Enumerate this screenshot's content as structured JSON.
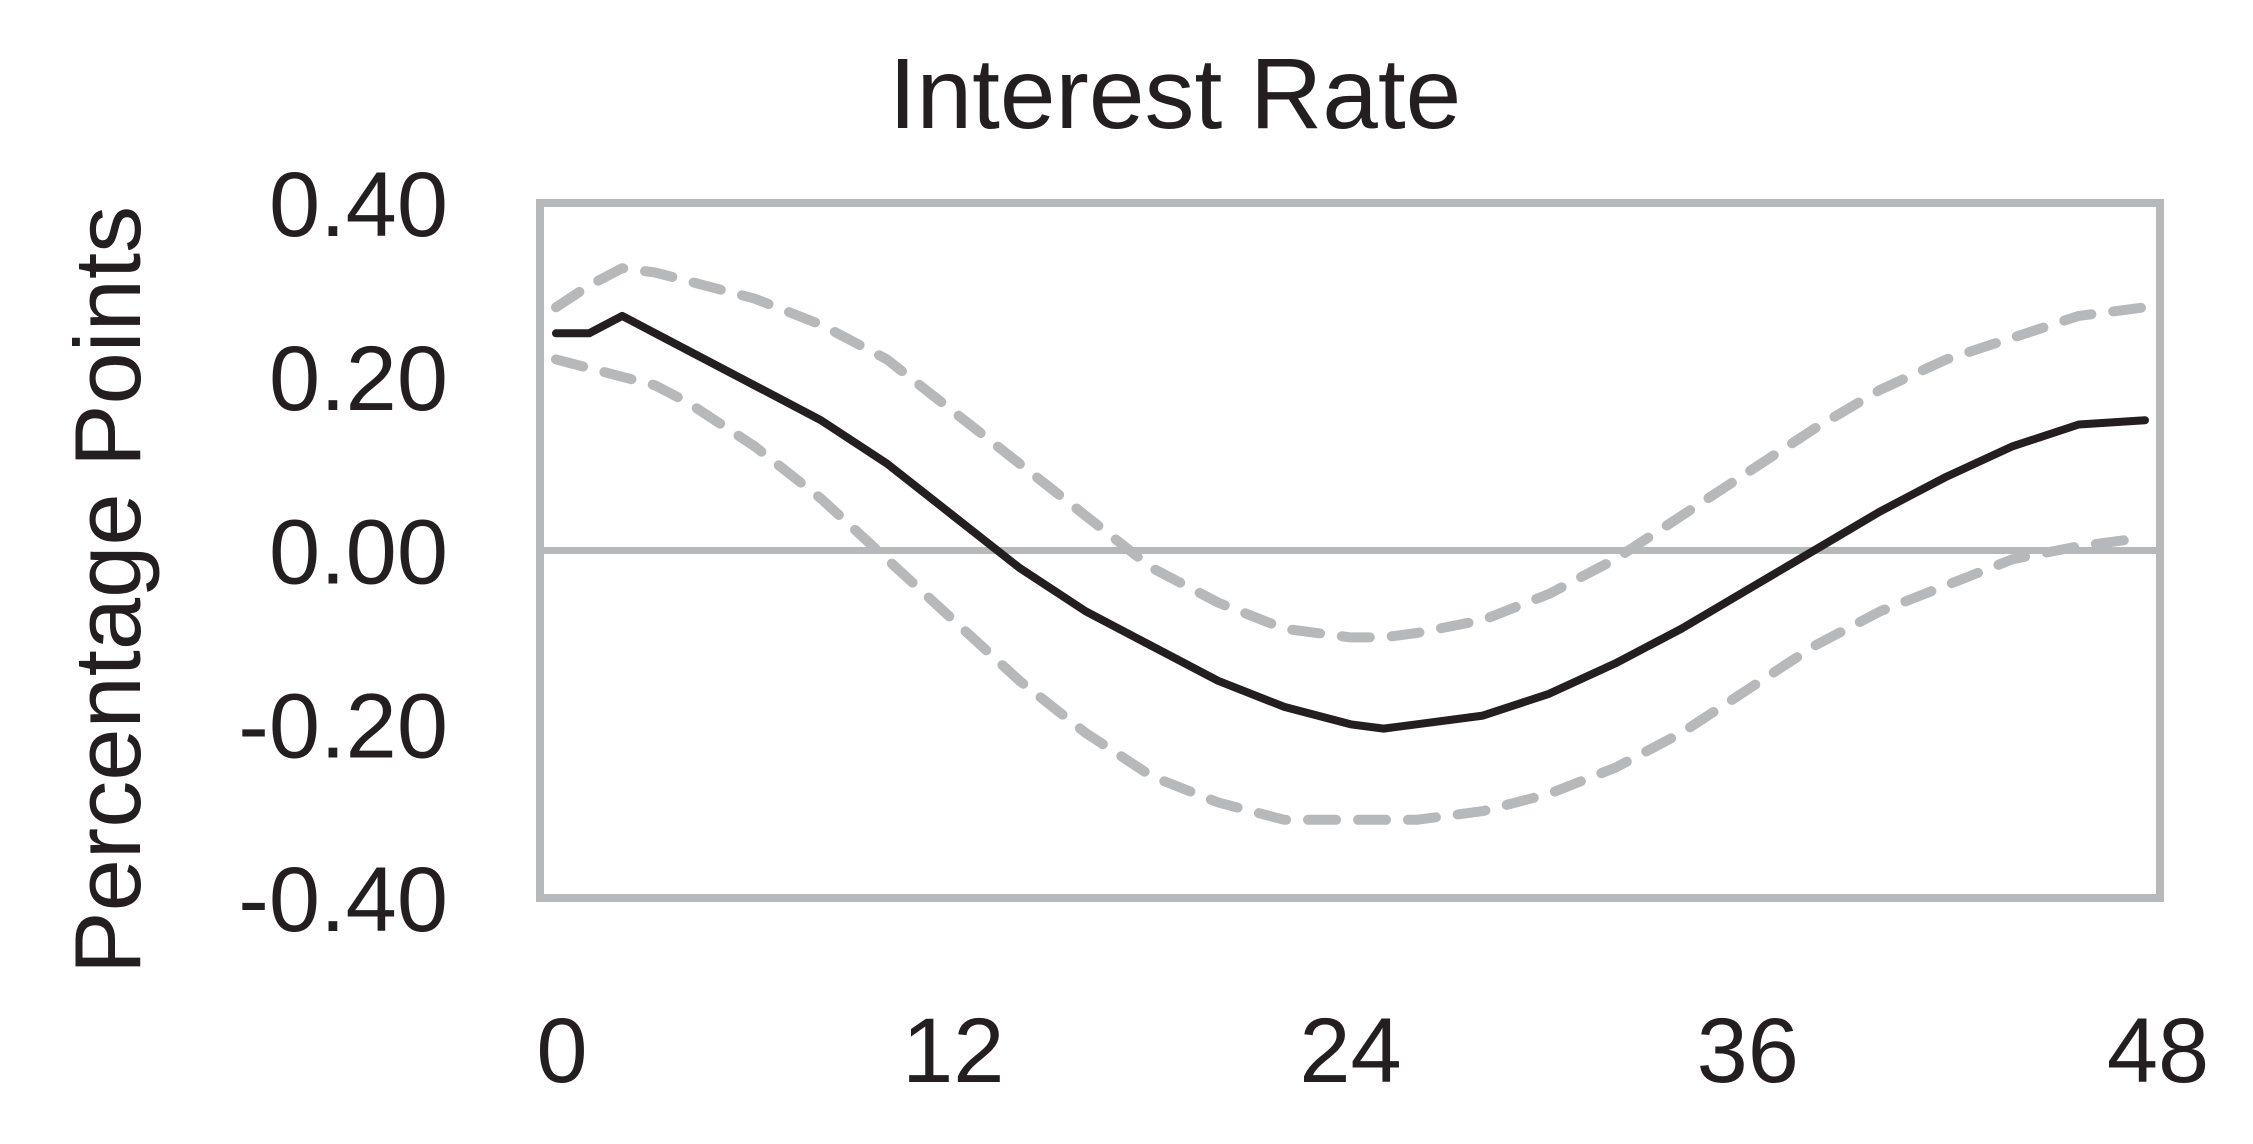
{
  "chart_data": {
    "type": "line",
    "title": "Interest Rate",
    "xlabel": "",
    "ylabel": "Percentage Points",
    "xlim": [
      0,
      48
    ],
    "ylim": [
      -0.4,
      0.4
    ],
    "x_ticks": [
      "0",
      "12",
      "24",
      "36",
      "48"
    ],
    "y_ticks": [
      "0.40",
      "0.20",
      "0.00",
      "-0.20",
      "-0.40"
    ],
    "grid": false,
    "legend": "none",
    "colors": {
      "estimate": "#231f20",
      "band": "#b7b8b9",
      "frame": "#b7b8b9",
      "zero_line": "#b7b8b9"
    },
    "series": [
      {
        "style": "solid",
        "x": [
          0,
          1,
          2,
          3,
          4,
          5,
          6,
          8,
          10,
          12,
          14,
          16,
          18,
          20,
          22,
          24,
          25,
          26,
          28,
          30,
          32,
          34,
          36,
          38,
          40,
          42,
          44,
          46,
          48
        ],
        "y": [
          0.25,
          0.25,
          0.27,
          0.25,
          0.23,
          0.21,
          0.19,
          0.15,
          0.1,
          0.04,
          -0.02,
          -0.07,
          -0.11,
          -0.15,
          -0.18,
          -0.2,
          -0.205,
          -0.2,
          -0.19,
          -0.165,
          -0.13,
          -0.09,
          -0.045,
          0.0,
          0.045,
          0.085,
          0.12,
          0.145,
          0.15
        ]
      },
      {
        "style": "dashed",
        "x": [
          0,
          1,
          2,
          3,
          4,
          6,
          8,
          10,
          12,
          14,
          16,
          18,
          20,
          22,
          24,
          25,
          26,
          28,
          30,
          32,
          34,
          36,
          38,
          40,
          42,
          44,
          46,
          48
        ],
        "y": [
          0.28,
          0.305,
          0.325,
          0.32,
          0.31,
          0.29,
          0.26,
          0.22,
          0.16,
          0.1,
          0.04,
          -0.02,
          -0.06,
          -0.09,
          -0.1,
          -0.1,
          -0.095,
          -0.08,
          -0.05,
          -0.01,
          0.04,
          0.09,
          0.14,
          0.185,
          0.22,
          0.245,
          0.27,
          0.28
        ]
      },
      {
        "style": "dashed",
        "x": [
          0,
          1,
          2,
          3,
          4,
          6,
          8,
          10,
          12,
          14,
          16,
          18,
          20,
          22,
          24,
          25,
          26,
          28,
          30,
          32,
          34,
          36,
          38,
          40,
          42,
          44,
          46,
          48
        ],
        "y": [
          0.22,
          0.21,
          0.2,
          0.19,
          0.17,
          0.12,
          0.06,
          -0.01,
          -0.08,
          -0.15,
          -0.21,
          -0.26,
          -0.29,
          -0.31,
          -0.31,
          -0.31,
          -0.31,
          -0.3,
          -0.28,
          -0.25,
          -0.21,
          -0.16,
          -0.11,
          -0.07,
          -0.04,
          -0.01,
          0.005,
          0.015
        ]
      }
    ]
  }
}
